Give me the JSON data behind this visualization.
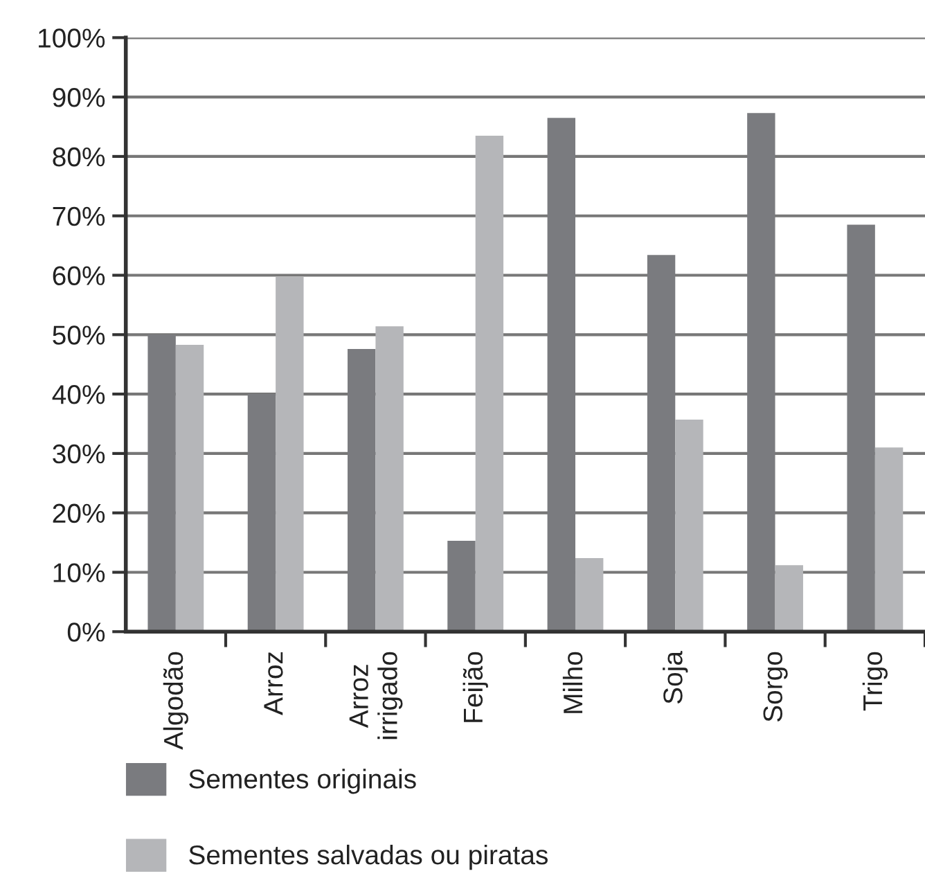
{
  "chart_data": {
    "type": "bar",
    "categories": [
      "Algodão",
      "Arroz",
      "Arroz\nirrigado",
      "Feijão",
      "Milho",
      "Soja",
      "Sorgo",
      "Trigo"
    ],
    "series": [
      {
        "name": "Sementes originais",
        "color": "#7a7b7f",
        "values": [
          50,
          40,
          47.6,
          15.3,
          86.5,
          63.4,
          87.3,
          68.5
        ]
      },
      {
        "name": "Sementes salvadas ou piratas",
        "color": "#b5b6b9",
        "values": [
          48.3,
          59.7,
          51.4,
          83.5,
          12.4,
          35.7,
          11.2,
          31.0
        ]
      }
    ],
    "ylim": [
      0,
      100
    ],
    "yticks": [
      {
        "value": 0,
        "label": "0%"
      },
      {
        "value": 10,
        "label": "10%"
      },
      {
        "value": 20,
        "label": "20%"
      },
      {
        "value": 30,
        "label": "30%"
      },
      {
        "value": 40,
        "label": "40%"
      },
      {
        "value": 50,
        "label": "50%"
      },
      {
        "value": 60,
        "label": "60%"
      },
      {
        "value": 70,
        "label": "70%"
      },
      {
        "value": 80,
        "label": "80%"
      },
      {
        "value": 90,
        "label": "90%"
      },
      {
        "value": 100,
        "label": "100%"
      }
    ],
    "grid": "y",
    "legend": "bottom"
  }
}
